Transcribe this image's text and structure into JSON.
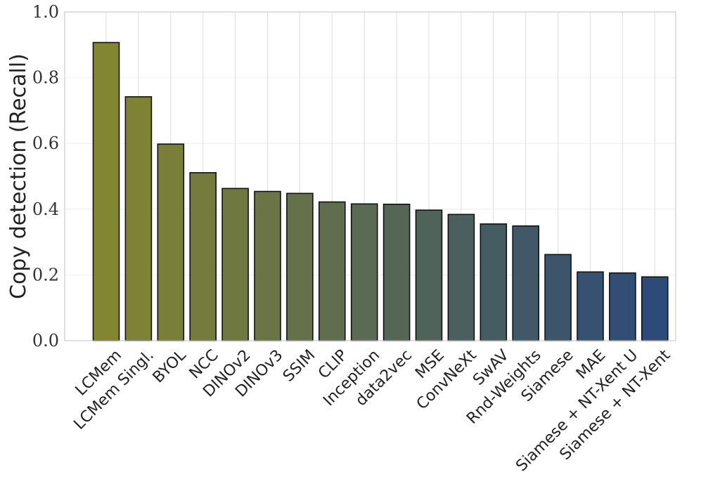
{
  "chart_data": {
    "type": "bar",
    "title": "",
    "xlabel": "",
    "ylabel": "Copy detection (Recall)",
    "ylim": [
      0,
      1.0
    ],
    "yticks": [
      "0.0",
      "0.2",
      "0.4",
      "0.6",
      "0.8",
      "1.0"
    ],
    "grid": true,
    "categories": [
      "LCMem",
      "LCMem Singl.",
      "BYOL",
      "NCC",
      "DINOv2",
      "DINOv3",
      "SSIM",
      "CLIP",
      "Inception",
      "data2vec",
      "MSE",
      "ConvNeXt",
      "SwAV",
      "Rnd-Weights",
      "Siamese",
      "MAE",
      "Siamese + NT-Xent U",
      "Siamese + NT-Xent"
    ],
    "values": [
      0.907,
      0.742,
      0.598,
      0.511,
      0.463,
      0.454,
      0.448,
      0.422,
      0.416,
      0.415,
      0.397,
      0.384,
      0.355,
      0.349,
      0.262,
      0.209,
      0.206,
      0.194
    ],
    "bar_color_start": "#838630",
    "bar_color_end": "#2d4a78",
    "bar_edge_color": "#111111",
    "grid_color": "#dddddd",
    "frame_color": "#cccccc"
  }
}
